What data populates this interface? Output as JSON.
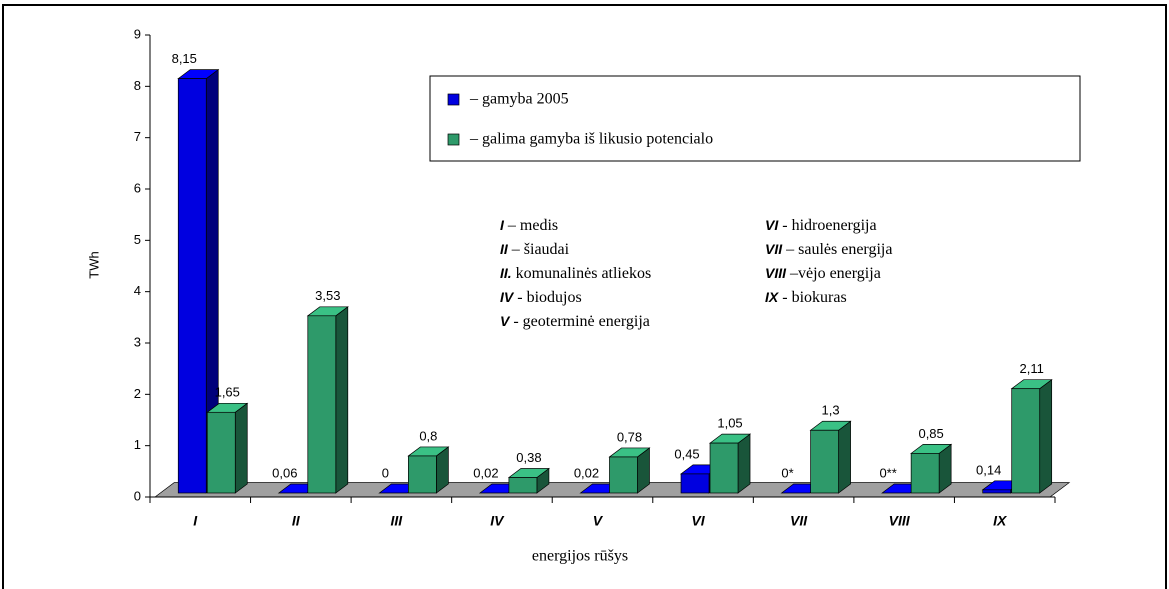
{
  "chart_data": {
    "type": "bar3d",
    "categories": [
      "I",
      "II",
      "III",
      "IV",
      "V",
      "VI",
      "VII",
      "VIII",
      "IX"
    ],
    "series": [
      {
        "name": "– gamyba 2005",
        "color": "#0000e0",
        "values": [
          8.15,
          0.06,
          0,
          0.02,
          0.02,
          0.45,
          0,
          0,
          0.14
        ],
        "value_labels": [
          "8,15",
          "0,06",
          "0",
          "0,02",
          "0,02",
          "0,45",
          "0*",
          "0**",
          "0,14"
        ]
      },
      {
        "name": "– galima gamyba iš likusio potencialo",
        "color": "#2e9a6a",
        "values": [
          1.65,
          3.53,
          0.8,
          0.38,
          0.78,
          1.05,
          1.3,
          0.85,
          2.11
        ],
        "value_labels": [
          "1,65",
          "3,53",
          "0,8",
          "0,38",
          "0,78",
          "1,05",
          "1,3",
          "0,85",
          "2,11"
        ]
      }
    ],
    "y_label": "TWh",
    "x_label": "energijos rūšys",
    "ylim": [
      0,
      9
    ],
    "yticks": [
      0,
      1,
      2,
      3,
      4,
      5,
      6,
      7,
      8,
      9
    ],
    "annotations": [
      {
        "key": "I",
        "text": "– medis"
      },
      {
        "key": "II",
        "text": "– šiaudai"
      },
      {
        "key": "II.",
        "text": "komunalinės atliekos"
      },
      {
        "key": "IV",
        "text": "- biodujos"
      },
      {
        "key": "V",
        "text": "-  geoterminė energija"
      },
      {
        "key": "VI",
        "text": "-  hidroenergija"
      },
      {
        "key": "VII",
        "text": "– saulės energija"
      },
      {
        "key": "VIII",
        "text": "–vėjo energija"
      },
      {
        "key": "IX",
        "text": "- biokuras"
      }
    ]
  }
}
